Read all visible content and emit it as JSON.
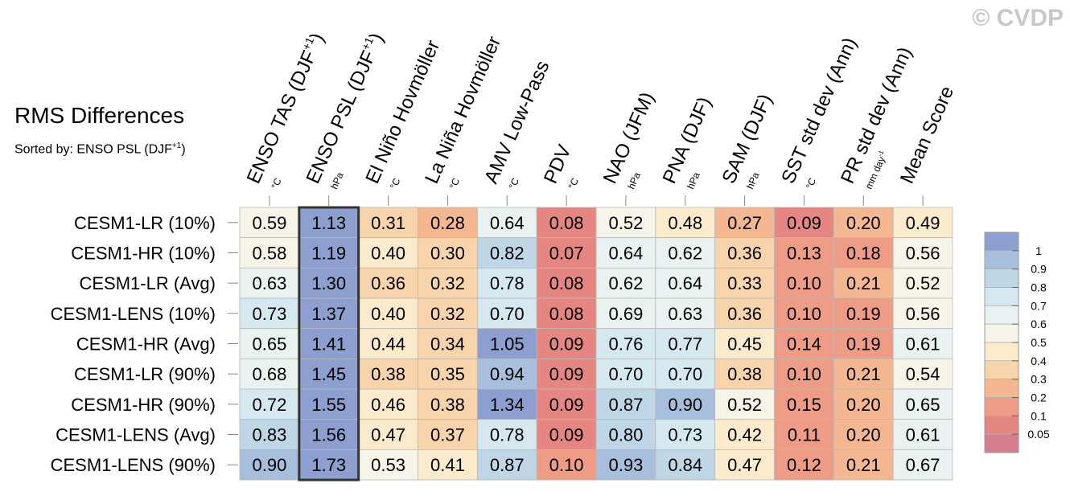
{
  "watermark": "© CVDP",
  "title": "RMS Differences",
  "subtitle": {
    "prefix": "Sorted by: ENSO PSL (DJF",
    "superscript": "+1",
    "suffix": ")"
  },
  "chart_data": {
    "type": "heatmap",
    "rows": [
      "CESM1-LR (10%)",
      "CESM1-HR (10%)",
      "CESM1-LR (Avg)",
      "CESM1-LENS (10%)",
      "CESM1-HR (Avg)",
      "CESM1-LR (90%)",
      "CESM1-HR (90%)",
      "CESM1-LENS (Avg)",
      "CESM1-LENS (90%)"
    ],
    "columns": [
      {
        "main": "ENSO TAS (DJF",
        "sup": "+1",
        "close": ")",
        "unit": "°C"
      },
      {
        "main": "ENSO PSL (DJF",
        "sup": "+1",
        "close": ")",
        "unit": "hPa"
      },
      {
        "main": "El Niño Hovmöller",
        "sup": "",
        "close": "",
        "unit": "°C"
      },
      {
        "main": "La Niña Hovmöller",
        "sup": "",
        "close": "",
        "unit": "°C"
      },
      {
        "main": "AMV Low-Pass",
        "sup": "",
        "close": "",
        "unit": "°C"
      },
      {
        "main": "PDV",
        "sup": "",
        "close": "",
        "unit": "°C"
      },
      {
        "main": "NAO (JFM)",
        "sup": "",
        "close": "",
        "unit": "hPa"
      },
      {
        "main": "PNA (DJF)",
        "sup": "",
        "close": "",
        "unit": "hPa"
      },
      {
        "main": "SAM (DJF)",
        "sup": "",
        "close": "",
        "unit": "hPa"
      },
      {
        "main": "SST std dev (Ann)",
        "sup": "",
        "close": "",
        "unit": "°C"
      },
      {
        "main": "PR std dev (Ann)",
        "sup": "",
        "close": "",
        "unit": "mm day",
        "unit_sup": "-1"
      },
      {
        "main": "Mean Score",
        "sup": "",
        "close": "",
        "unit": ""
      }
    ],
    "values": [
      [
        "0.59",
        "1.13",
        "0.31",
        "0.28",
        "0.64",
        "0.08",
        "0.52",
        "0.48",
        "0.27",
        "0.09",
        "0.20",
        "0.49"
      ],
      [
        "0.58",
        "1.19",
        "0.40",
        "0.30",
        "0.82",
        "0.07",
        "0.64",
        "0.62",
        "0.36",
        "0.13",
        "0.18",
        "0.56"
      ],
      [
        "0.63",
        "1.30",
        "0.36",
        "0.32",
        "0.78",
        "0.08",
        "0.62",
        "0.64",
        "0.33",
        "0.10",
        "0.21",
        "0.52"
      ],
      [
        "0.73",
        "1.37",
        "0.40",
        "0.32",
        "0.70",
        "0.08",
        "0.69",
        "0.63",
        "0.36",
        "0.10",
        "0.19",
        "0.56"
      ],
      [
        "0.65",
        "1.41",
        "0.44",
        "0.34",
        "1.05",
        "0.09",
        "0.76",
        "0.77",
        "0.45",
        "0.14",
        "0.19",
        "0.61"
      ],
      [
        "0.68",
        "1.45",
        "0.38",
        "0.35",
        "0.94",
        "0.09",
        "0.70",
        "0.70",
        "0.38",
        "0.10",
        "0.21",
        "0.54"
      ],
      [
        "0.72",
        "1.55",
        "0.46",
        "0.38",
        "1.34",
        "0.09",
        "0.87",
        "0.90",
        "0.52",
        "0.15",
        "0.20",
        "0.65"
      ],
      [
        "0.83",
        "1.56",
        "0.47",
        "0.37",
        "0.78",
        "0.09",
        "0.80",
        "0.73",
        "0.42",
        "0.11",
        "0.20",
        "0.61"
      ],
      [
        "0.90",
        "1.73",
        "0.53",
        "0.41",
        "0.87",
        "0.10",
        "0.93",
        "0.84",
        "0.47",
        "0.12",
        "0.21",
        "0.67"
      ]
    ],
    "highlighted_column": 1,
    "colorbar": {
      "labels": [
        "1",
        "0.9",
        "0.8",
        "0.7",
        "0.6",
        "0.5",
        "0.4",
        "0.3",
        "0.2",
        "0.1",
        "0.05"
      ],
      "bounds": [
        1.0,
        0.9,
        0.8,
        0.7,
        0.6,
        0.5,
        0.4,
        0.3,
        0.2,
        0.1,
        0.05
      ],
      "colors": [
        "#8c9fcf",
        "#a7bedc",
        "#bfd6e7",
        "#d5e8f0",
        "#e9f2f0",
        "#f6f3e8",
        "#fbeacc",
        "#f8d4ad",
        "#f4b792",
        "#ee9c86",
        "#e68683",
        "#d77d8e"
      ]
    }
  }
}
